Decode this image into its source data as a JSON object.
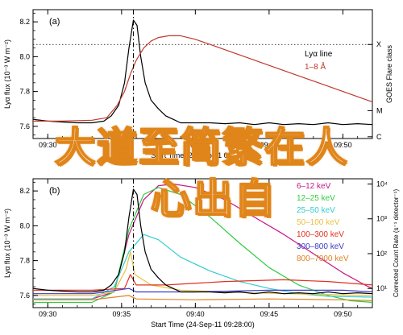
{
  "chart_data": [
    {
      "type": "line",
      "panel_label": "(a)",
      "ylabel": "Lyα flux (10⁻³ W m⁻²)",
      "yticks": [
        "7.6",
        "7.8",
        "8.0",
        "8.2"
      ],
      "ylim": [
        7.53,
        8.27
      ],
      "xlim": [
        29.0,
        52.0
      ],
      "xticks": [
        {
          "v": 30,
          "label": "09:30"
        },
        {
          "v": 35,
          "label": "09:35"
        },
        {
          "v": 40,
          "label": "09:40"
        },
        {
          "v": 45,
          "label": "09:45"
        },
        {
          "v": 50,
          "label": "09:50"
        }
      ],
      "xlabel": "Start Time (24-Sep-11 09:28:00)",
      "right_axis_label": "GOES Flare class",
      "right_ticks": [
        {
          "label": "X",
          "y": 8.07
        },
        {
          "label": "M",
          "y": 7.69
        },
        {
          "label": "C",
          "y": 7.54
        }
      ],
      "right_range": [
        7.55,
        8.14
      ],
      "dotted_level": 8.07,
      "vline_x": 35.8,
      "grid": false,
      "legend_position": "center-right",
      "series": [
        {
          "name": "Lyα line",
          "color": "#000000",
          "axis": "left",
          "points": [
            [
              29,
              7.64
            ],
            [
              30,
              7.63
            ],
            [
              31,
              7.625
            ],
            [
              32,
              7.62
            ],
            [
              33,
              7.62
            ],
            [
              33.8,
              7.63
            ],
            [
              34.3,
              7.66
            ],
            [
              34.8,
              7.72
            ],
            [
              35.2,
              7.85
            ],
            [
              35.5,
              8.05
            ],
            [
              35.8,
              8.21
            ],
            [
              36.05,
              8.18
            ],
            [
              36.3,
              8.0
            ],
            [
              36.6,
              7.85
            ],
            [
              37,
              7.75
            ],
            [
              37.5,
              7.7
            ],
            [
              38,
              7.66
            ],
            [
              38.5,
              7.64
            ],
            [
              39,
              7.62
            ],
            [
              40,
              7.62
            ],
            [
              41,
              7.62
            ],
            [
              42,
              7.615
            ],
            [
              43,
              7.62
            ],
            [
              44,
              7.61
            ],
            [
              45,
              7.62
            ],
            [
              46,
              7.61
            ],
            [
              47,
              7.615
            ],
            [
              48,
              7.61
            ],
            [
              49,
              7.62
            ],
            [
              50,
              7.61
            ],
            [
              51,
              7.615
            ],
            [
              52,
              7.61
            ]
          ]
        },
        {
          "name": "1–8 Å",
          "color": "#c0392b",
          "axis": "right",
          "points": [
            [
              29,
              7.63
            ],
            [
              31,
              7.63
            ],
            [
              33,
              7.635
            ],
            [
              34,
              7.65
            ],
            [
              34.7,
              7.72
            ],
            [
              35.2,
              7.8
            ],
            [
              35.6,
              7.9
            ],
            [
              36,
              7.98
            ],
            [
              36.5,
              8.05
            ],
            [
              37,
              8.09
            ],
            [
              37.5,
              8.11
            ],
            [
              38.2,
              8.12
            ],
            [
              39,
              8.12
            ],
            [
              40,
              8.1
            ],
            [
              41,
              8.07
            ],
            [
              42,
              8.04
            ],
            [
              43,
              8.01
            ],
            [
              44,
              7.98
            ],
            [
              45,
              7.95
            ],
            [
              46,
              7.92
            ],
            [
              47,
              7.89
            ],
            [
              48,
              7.86
            ],
            [
              49,
              7.83
            ],
            [
              50,
              7.8
            ],
            [
              51,
              7.77
            ],
            [
              52,
              7.74
            ]
          ]
        }
      ]
    },
    {
      "type": "line",
      "panel_label": "(b)",
      "ylabel": "Lyα flux (10⁻³ W m⁻²)",
      "yticks": [
        "7.6",
        "7.8",
        "8.0",
        "8.2"
      ],
      "ylim": [
        7.53,
        8.27
      ],
      "xlim": [
        29.0,
        52.0
      ],
      "xticks": [
        {
          "v": 30,
          "label": "09:30"
        },
        {
          "v": 35,
          "label": "09:35"
        },
        {
          "v": 40,
          "label": "09:40"
        },
        {
          "v": 45,
          "label": "09:45"
        },
        {
          "v": 50,
          "label": "09:50"
        }
      ],
      "xlabel": "Start Time (24-Sep-11 09:28:00)",
      "right_axis_label": "Corrected Count Rate (s⁻¹ detector⁻¹)",
      "right_ticks": [
        {
          "label": "10⁴",
          "y": 8.24
        },
        {
          "label": "10³",
          "y": 8.04
        },
        {
          "label": "10²",
          "y": 7.84
        },
        {
          "label": "10¹",
          "y": 7.64
        }
      ],
      "vline_x": 35.8,
      "grid": false,
      "legend_position": "top-right",
      "series": [
        {
          "name": "6–12 keV",
          "color": "#c71585",
          "points": [
            [
              29,
              7.58
            ],
            [
              33,
              7.58
            ],
            [
              34.5,
              7.62
            ],
            [
              35.5,
              7.95
            ],
            [
              36.5,
              8.15
            ],
            [
              37.5,
              8.23
            ],
            [
              38.5,
              8.24
            ],
            [
              40,
              8.22
            ],
            [
              42,
              8.15
            ],
            [
              44,
              8.05
            ],
            [
              46,
              7.95
            ],
            [
              48,
              7.84
            ],
            [
              50,
              7.73
            ],
            [
              51.5,
              7.66
            ],
            [
              52,
              7.64
            ]
          ]
        },
        {
          "name": "12–25 keV",
          "color": "#2ecc40",
          "points": [
            [
              29,
              7.56
            ],
            [
              33,
              7.56
            ],
            [
              34.5,
              7.62
            ],
            [
              35.5,
              7.98
            ],
            [
              36.5,
              8.18
            ],
            [
              37.5,
              8.22
            ],
            [
              39,
              8.18
            ],
            [
              41,
              8.05
            ],
            [
              43,
              7.9
            ],
            [
              45,
              7.76
            ],
            [
              47,
              7.66
            ],
            [
              49,
              7.6
            ],
            [
              50.5,
              7.57
            ],
            [
              52,
              7.56
            ]
          ]
        },
        {
          "name": "25–50 keV",
          "color": "#33cccc",
          "points": [
            [
              29,
              7.58
            ],
            [
              33,
              7.58
            ],
            [
              34.5,
              7.65
            ],
            [
              35.5,
              7.85
            ],
            [
              36.5,
              7.95
            ],
            [
              37.5,
              7.92
            ],
            [
              39,
              7.82
            ],
            [
              41,
              7.74
            ],
            [
              43,
              7.68
            ],
            [
              45,
              7.64
            ],
            [
              47,
              7.61
            ],
            [
              49,
              7.595
            ],
            [
              52,
              7.59
            ]
          ]
        },
        {
          "name": "50–100 keV",
          "color": "#e8c040",
          "points": [
            [
              29,
              7.6
            ],
            [
              33,
              7.6
            ],
            [
              34.5,
              7.62
            ],
            [
              35.3,
              7.75
            ],
            [
              35.6,
              7.85
            ],
            [
              35.9,
              7.72
            ],
            [
              37,
              7.66
            ],
            [
              39,
              7.63
            ],
            [
              42,
              7.62
            ],
            [
              46,
              7.61
            ],
            [
              52,
              7.6
            ]
          ]
        },
        {
          "name": "100–300 keV",
          "color": "#e03020",
          "points": [
            [
              29,
              7.63
            ],
            [
              33,
              7.63
            ],
            [
              35.2,
              7.64
            ],
            [
              35.6,
              7.72
            ],
            [
              36,
              7.66
            ],
            [
              38,
              7.66
            ],
            [
              42,
              7.68
            ],
            [
              46,
              7.69
            ],
            [
              49,
              7.68
            ],
            [
              52,
              7.66
            ]
          ]
        },
        {
          "name": "300–800 keV",
          "color": "#3a3ac8",
          "points": [
            [
              29,
              7.61
            ],
            [
              33,
              7.61
            ],
            [
              35.5,
              7.64
            ],
            [
              36,
              7.62
            ],
            [
              40,
              7.62
            ],
            [
              45,
              7.63
            ],
            [
              50,
              7.63
            ],
            [
              52,
              7.62
            ]
          ]
        },
        {
          "name": "800–7000 keV",
          "color": "#e08020",
          "points": [
            [
              29,
              7.575
            ],
            [
              33,
              7.575
            ],
            [
              35.5,
              7.6
            ],
            [
              36,
              7.58
            ],
            [
              40,
              7.575
            ],
            [
              45,
              7.58
            ],
            [
              50,
              7.575
            ],
            [
              52,
              7.57
            ]
          ]
        },
        {
          "name": "Lyα line",
          "color": "#000000",
          "in_legend": false,
          "points": [
            [
              29,
              7.64
            ],
            [
              30,
              7.63
            ],
            [
              31,
              7.625
            ],
            [
              32,
              7.62
            ],
            [
              33,
              7.62
            ],
            [
              33.8,
              7.63
            ],
            [
              34.3,
              7.66
            ],
            [
              34.8,
              7.72
            ],
            [
              35.2,
              7.85
            ],
            [
              35.5,
              8.05
            ],
            [
              35.8,
              8.21
            ],
            [
              36.05,
              8.18
            ],
            [
              36.3,
              8.0
            ],
            [
              36.6,
              7.85
            ],
            [
              37,
              7.75
            ],
            [
              37.5,
              7.7
            ],
            [
              38,
              7.66
            ],
            [
              38.5,
              7.64
            ],
            [
              39,
              7.62
            ],
            [
              40,
              7.62
            ],
            [
              41,
              7.62
            ],
            [
              42,
              7.615
            ],
            [
              43,
              7.62
            ],
            [
              44,
              7.61
            ],
            [
              45,
              7.62
            ],
            [
              46,
              7.61
            ],
            [
              47,
              7.615
            ],
            [
              48,
              7.61
            ],
            [
              49,
              7.62
            ],
            [
              50,
              7.61
            ],
            [
              51,
              7.615
            ],
            [
              52,
              7.61
            ]
          ]
        }
      ]
    }
  ],
  "overlay": {
    "line1": "大道至简繁在人",
    "line2": "心出自"
  }
}
